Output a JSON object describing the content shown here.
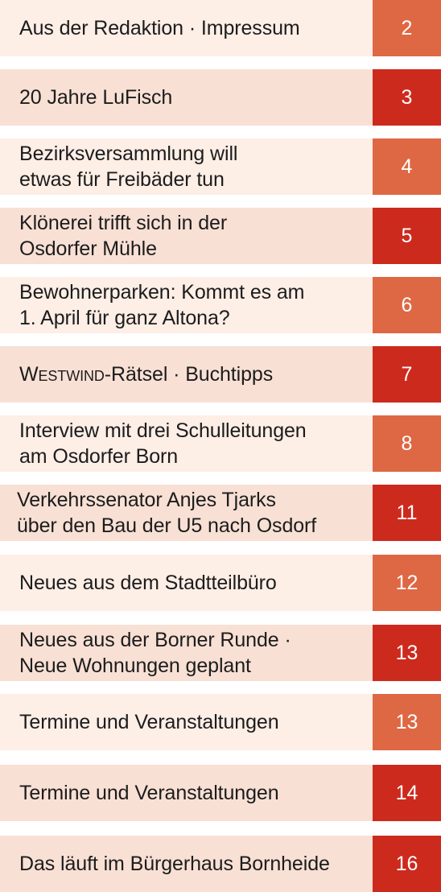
{
  "colors": {
    "row_light": "#fdeee6",
    "row_mid": "#f8e0d5",
    "page_orange": "#de6844",
    "page_red": "#cd2a1e",
    "text": "#1c1c1c"
  },
  "toc": [
    {
      "title": "Aus der Redaktion · Impressum",
      "page": "2"
    },
    {
      "title": "20 Jahre LuFisch",
      "page": "3"
    },
    {
      "title": "Bezirksversammlung will\netwas für Freibäder tun",
      "page": "4"
    },
    {
      "title": "Klönerei trifft sich in der\nOsdorfer Mühle",
      "page": "5"
    },
    {
      "title": "Bewohnerparken: Kommt es am\n1. April für ganz Altona?",
      "page": "6"
    },
    {
      "title_prefix": "Westwind",
      "title_suffix": "-Rätsel · Buchtipps",
      "page": "7"
    },
    {
      "title": "Interview mit drei Schulleitungen\nam Osdorfer Born",
      "page": "8"
    },
    {
      "title": "Verkehrssenator Anjes Tjarks\nüber den Bau der U5 nach Osdorf",
      "page": "11"
    },
    {
      "title": "Neues aus dem Stadtteilbüro",
      "page": "12"
    },
    {
      "title": "Neues aus der Borner Runde ·\nNeue Wohnungen geplant",
      "page": "13"
    },
    {
      "title": "Termine und Veranstaltungen",
      "page": "13"
    },
    {
      "title": "Termine und Veranstaltungen",
      "page": "14"
    },
    {
      "title": "Das läuft im Bürgerhaus Bornheide",
      "page": "16"
    }
  ]
}
